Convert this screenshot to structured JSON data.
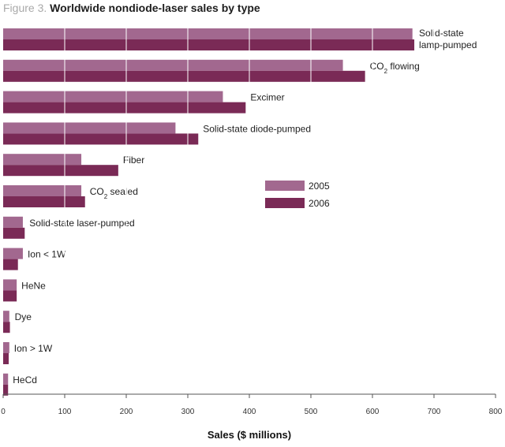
{
  "figure_label": "Figure 3.",
  "title": "Worldwide nondiode-laser sales by type",
  "colors": {
    "series_2005": "#a2688f",
    "series_2006": "#7a2a56",
    "grid": "#ffffff",
    "axis": "#555555"
  },
  "chart_data": {
    "type": "bar",
    "orientation": "horizontal",
    "title": "Worldwide nondiode-laser sales by type",
    "xlabel": "Sales ($ millions)",
    "ylabel": "",
    "xlim": [
      0,
      800
    ],
    "xticks": [
      0,
      100,
      200,
      300,
      400,
      500,
      600,
      700,
      800
    ],
    "grid": "vertical lines inside bars",
    "legend_position": "center-right",
    "categories": [
      {
        "lines": [
          "Solid-state",
          "lamp-pumped"
        ]
      },
      {
        "lines": [
          "CO|2| flowing"
        ]
      },
      {
        "lines": [
          "Excimer"
        ]
      },
      {
        "lines": [
          "Solid-state diode-pumped"
        ]
      },
      {
        "lines": [
          "Fiber"
        ]
      },
      {
        "lines": [
          "CO|2| sealed"
        ]
      },
      {
        "lines": [
          "Solid-state laser-pumped"
        ]
      },
      {
        "lines": [
          "Ion < 1W"
        ]
      },
      {
        "lines": [
          "HeNe"
        ]
      },
      {
        "lines": [
          "Dye"
        ]
      },
      {
        "lines": [
          "Ion > 1W"
        ]
      },
      {
        "lines": [
          "HeCd"
        ]
      }
    ],
    "series": [
      {
        "name": "2005",
        "color": "#a2688f",
        "values": [
          665,
          552,
          357,
          280,
          127,
          127,
          32,
          32,
          22,
          10,
          10,
          8
        ]
      },
      {
        "name": "2006",
        "color": "#7a2a56",
        "values": [
          668,
          588,
          394,
          317,
          187,
          133,
          35,
          24,
          22,
          11,
          9,
          8
        ]
      }
    ]
  }
}
